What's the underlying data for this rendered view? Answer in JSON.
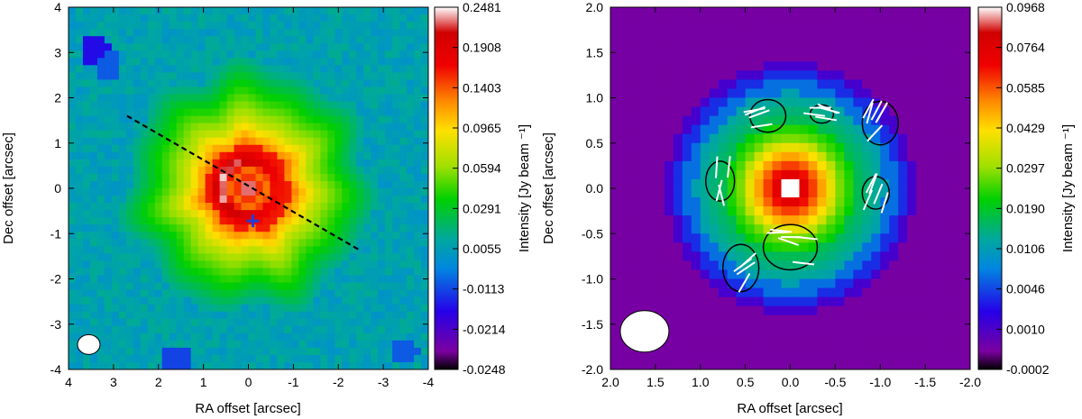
{
  "chart_data": [
    {
      "type": "heatmap",
      "panel": "left",
      "xlabel": "RA offset [arcsec]",
      "ylabel": "Dec offset [arcsec]",
      "xlim": [
        4,
        -4
      ],
      "ylim": [
        -4,
        4
      ],
      "x_ticks": [
        "4",
        "3",
        "2",
        "1",
        "0",
        "-1",
        "-2",
        "-3",
        "-4"
      ],
      "y_ticks": [
        "4",
        "3",
        "2",
        "1",
        "0",
        "-1",
        "-2",
        "-3",
        "-4"
      ],
      "colorbar_label": "Intensity [Jy beam ⁻¹]",
      "colorbar_ticks": [
        "0.2481",
        "0.1908",
        "0.1403",
        "0.0965",
        "0.0594",
        "0.0291",
        "0.0055",
        "-0.0113",
        "-0.0214",
        "-0.0248"
      ],
      "annotations": [
        {
          "kind": "dashed-line",
          "x1": 2.7,
          "y1": 1.6,
          "x2": -2.45,
          "y2": -1.35
        },
        {
          "kind": "cross",
          "x": -0.1,
          "y": -0.72,
          "color": "#1f3fd6"
        },
        {
          "kind": "beam-ellipse",
          "x": 3.55,
          "y": -3.45
        }
      ]
    },
    {
      "type": "heatmap",
      "panel": "right",
      "xlabel": "RA offset [arcsec]",
      "ylabel": "Dec offset [arcsec]",
      "xlim": [
        2.0,
        -2.0
      ],
      "ylim": [
        -2.0,
        2.0
      ],
      "x_ticks": [
        "2.0",
        "1.5",
        "1.0",
        "0.5",
        "0.0",
        "-0.5",
        "-1.0",
        "-1.5",
        "-2.0"
      ],
      "y_ticks": [
        "2.0",
        "1.5",
        "1.0",
        "0.5",
        "0.0",
        "-0.5",
        "-1.0",
        "-1.5",
        "-2.0"
      ],
      "colorbar_label": "Intensity [Jy beam ⁻¹]",
      "colorbar_ticks": [
        "0.0968",
        "0.0764",
        "0.0585",
        "0.0429",
        "0.0297",
        "0.0190",
        "0.0106",
        "0.0046",
        "0.0010",
        "-0.0002"
      ],
      "annotations": [
        {
          "kind": "polarization-vectors",
          "color": "#ffffff"
        },
        {
          "kind": "contours",
          "color": "#000000"
        },
        {
          "kind": "beam-ellipse",
          "x": 1.62,
          "y": -1.58
        }
      ]
    }
  ],
  "colors": {
    "colormap": [
      "#000000",
      "#7b00a0",
      "#2600e8",
      "#0087e0",
      "#00a89e",
      "#00d000",
      "#a0e000",
      "#ffe000",
      "#ff8a00",
      "#f00000",
      "#d00000",
      "#ffffff"
    ],
    "dashed_line": "#000000",
    "cross": "#1f3fd6"
  }
}
